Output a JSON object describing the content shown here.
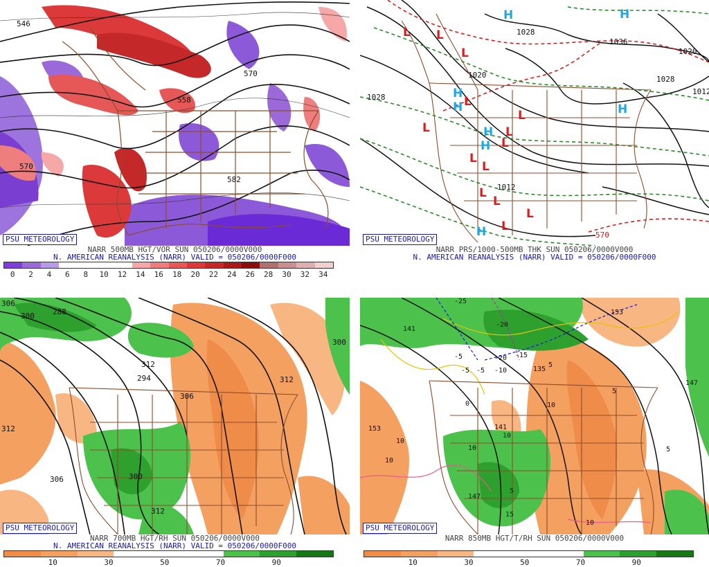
{
  "badge_text": "PSU METEOROLOGY",
  "panels": [
    {
      "id": "tl",
      "caption_line1": "NARR 500MB HGT/VOR SUN 050206/0000V000",
      "caption_line2": "N. AMERICAN REANALYSIS (NARR) VALID = 050206/0000F000",
      "contour_labels": [
        "570",
        "570",
        "558",
        "582",
        "546"
      ],
      "scale_labels": [
        "0",
        "2",
        "4",
        "6",
        "8",
        "10",
        "12",
        "14",
        "16",
        "18",
        "20",
        "22",
        "24",
        "26",
        "28",
        "30",
        "32",
        "34"
      ],
      "scale_colors": [
        "#7f3fd6",
        "#9b6ad8",
        "#b79be6",
        "#ffffff",
        "#ffffff",
        "#ffffff",
        "#ffffff",
        "#f6a7a7",
        "#ee7d7d",
        "#e65858",
        "#dc3a3a",
        "#c42828",
        "#a81818",
        "#8a0e0e",
        "#b07070",
        "#c89090",
        "#dcb0b0",
        "#f3d0d0"
      ]
    },
    {
      "id": "tr",
      "caption_line1": "NARR PRS/1000-500MB THK SUN 050206/0000V000",
      "caption_line2": "N. AMERICAN REANALYSIS (NARR) VALID = 050206/0000F000",
      "contour_labels": [
        "1028",
        "1020",
        "1012",
        "1036",
        "1028",
        "1020",
        "1012",
        "1028",
        "570"
      ],
      "high_symbol": "H",
      "low_symbol": "L"
    },
    {
      "id": "bl",
      "caption_line1": "NARR 700MB HGT/RH SUN 050206/0000V000",
      "caption_line2": "N. AMERICAN REANALYSIS (NARR) VALID = 050206/0000F000",
      "contour_labels": [
        "306",
        "288",
        "300",
        "312",
        "294",
        "306",
        "312",
        "300",
        "312",
        "306",
        "300",
        "312"
      ],
      "scale_labels": [
        "10",
        "30",
        "50",
        "70",
        "90"
      ],
      "scale_colors": [
        "#f08c4a",
        "#f4a060",
        "#f8b682",
        "#ffffff",
        "#ffffff",
        "#ffffff",
        "#4cc24c",
        "#2ea02e",
        "#157a15"
      ]
    },
    {
      "id": "br",
      "caption_line1": "NARR 850MB HGT/T/RH SUN 050206/0000V000",
      "caption_line2": "",
      "contour_labels": [
        "141",
        "153",
        "147",
        "153",
        "135",
        "141",
        "147",
        "-25",
        "-20",
        "-15",
        "-20",
        "-10",
        "-5",
        "-5",
        "-5",
        "0",
        "5",
        "5",
        "10",
        "10",
        "10",
        "10",
        "10",
        "10",
        "5",
        "5",
        "15"
      ],
      "scale_labels": [
        "10",
        "30",
        "50",
        "70",
        "90"
      ],
      "scale_colors": [
        "#f08c4a",
        "#f4a060",
        "#f8b682",
        "#ffffff",
        "#ffffff",
        "#ffffff",
        "#4cc24c",
        "#2ea02e",
        "#157a15"
      ]
    }
  ]
}
